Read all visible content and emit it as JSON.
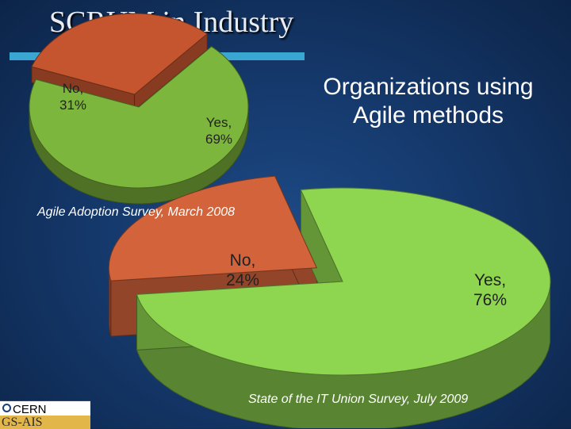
{
  "slide": {
    "title": "SCRUM in Industry",
    "subtitle": "Organizations using Agile methods"
  },
  "chart_data": [
    {
      "type": "pie",
      "caption": "Agile Adoption Survey, March 2008",
      "slices": [
        {
          "label": "No",
          "value": 31,
          "text_line1": "No,",
          "text_line2": "31%",
          "color": "#c4552f"
        },
        {
          "label": "Yes",
          "value": 69,
          "text_line1": "Yes,",
          "text_line2": "69%",
          "color": "#7db63c"
        }
      ]
    },
    {
      "type": "pie",
      "caption": "State of the IT Union Survey, July 2009",
      "slices": [
        {
          "label": "No",
          "value": 24,
          "text_line1": "No,",
          "text_line2": "24%",
          "color": "#d2633a"
        },
        {
          "label": "Yes",
          "value": 76,
          "text_line1": "Yes,",
          "text_line2": "76%",
          "color": "#8fd650"
        }
      ]
    }
  ],
  "logo": {
    "name": "CERN",
    "unit": "GS-AIS"
  }
}
